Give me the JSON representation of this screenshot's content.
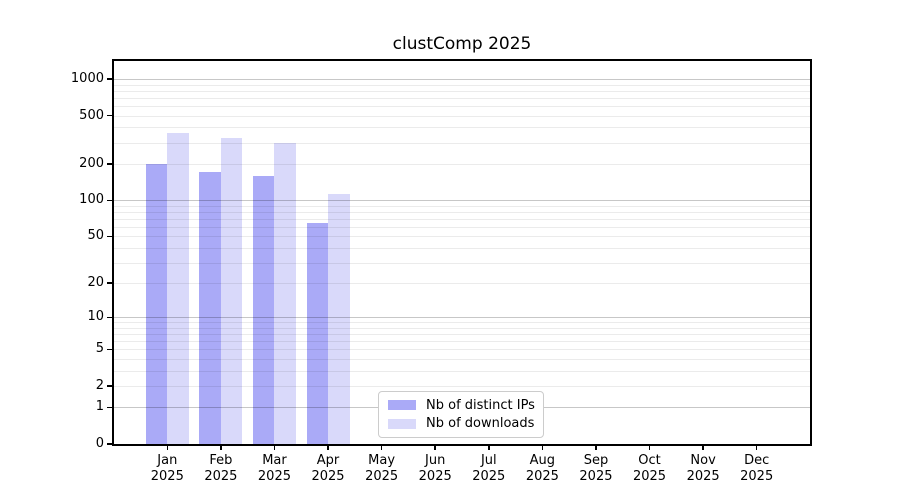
{
  "chart_data": {
    "type": "bar",
    "title": "clustComp 2025",
    "categories": [
      "Jan",
      "Feb",
      "Mar",
      "Apr",
      "May",
      "Jun",
      "Jul",
      "Aug",
      "Sep",
      "Oct",
      "Nov",
      "Dec"
    ],
    "category_year": "2025",
    "series": [
      {
        "name": "Nb of distinct IPs",
        "color": "#aaaaf7",
        "values": [
          200,
          170,
          158,
          65,
          0,
          0,
          0,
          0,
          0,
          0,
          0,
          0
        ]
      },
      {
        "name": "Nb of downloads",
        "color": "#d9d9fa",
        "values": [
          360,
          328,
          300,
          113,
          0,
          0,
          0,
          0,
          0,
          0,
          0,
          0
        ]
      }
    ],
    "xlabel": "",
    "ylabel": "",
    "y_ticks": [
      0,
      1,
      2,
      5,
      10,
      20,
      50,
      100,
      200,
      500,
      1000
    ],
    "y_scale": "log10(1+x)",
    "ylim": [
      0,
      1411
    ],
    "grid": {
      "major_lines_at": [
        1,
        10,
        100,
        1000
      ],
      "minor_lines": "2-9 of each decade"
    },
    "legend": {
      "position": "bottom-center-of-plot",
      "entries": [
        "Nb of distinct IPs",
        "Nb of downloads"
      ]
    }
  },
  "colors": {
    "bar_distinct_ips": "#aaaaf7",
    "bar_downloads": "#d9d9fa",
    "grid_major": "rgba(0,0,0,0.22)",
    "grid_minor": "rgba(0,0,0,0.08)",
    "axis": "#000000",
    "legend_border": "#cccccc",
    "background": "#ffffff"
  }
}
